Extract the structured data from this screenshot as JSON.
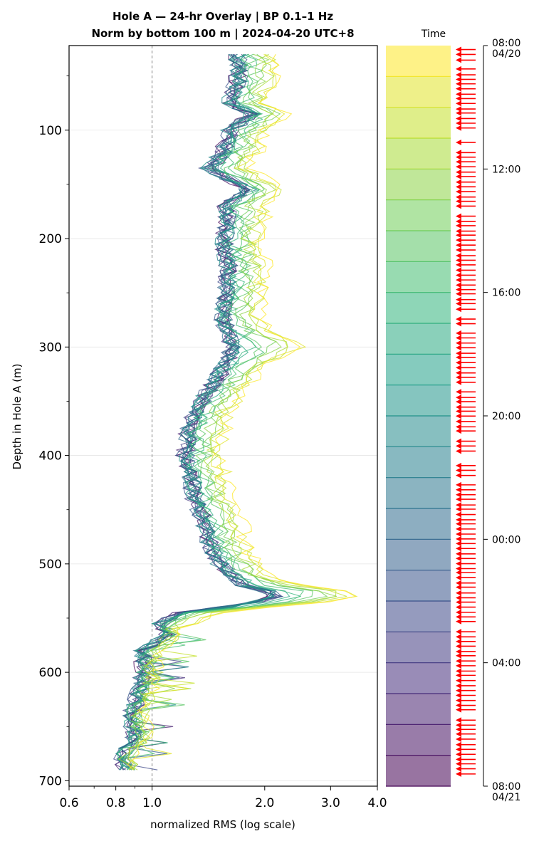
{
  "chart_data": {
    "type": "line",
    "title": "Hole A — 24-hr Overlay  |  BP 0.1–1 Hz",
    "subtitle": "Norm by bottom 100 m  |  2024-04-20 UTC+8",
    "xlabel": "normalized RMS  (log scale)",
    "ylabel": "Depth in Hole A (m)",
    "xscale": "log",
    "xlim": [
      0.6,
      4.0
    ],
    "ylim": [
      705,
      22
    ],
    "x_ticks": [
      "0.6",
      "0.8",
      "1.0",
      "2.0",
      "3.0",
      "4.0"
    ],
    "y_ticks": [
      "100",
      "200",
      "300",
      "400",
      "500",
      "600",
      "700"
    ],
    "reference_line_x": 1.0,
    "grid": "horizontal",
    "n_traces": 24,
    "trace_step_m": 5,
    "depth_range_m": [
      30,
      690
    ],
    "profile_knots": [
      [
        30,
        1.7
      ],
      [
        50,
        1.7
      ],
      [
        75,
        1.62
      ],
      [
        85,
        1.85
      ],
      [
        100,
        1.62
      ],
      [
        120,
        1.55
      ],
      [
        135,
        1.42
      ],
      [
        145,
        1.6
      ],
      [
        155,
        1.8
      ],
      [
        170,
        1.58
      ],
      [
        185,
        1.6
      ],
      [
        200,
        1.55
      ],
      [
        225,
        1.6
      ],
      [
        250,
        1.58
      ],
      [
        275,
        1.55
      ],
      [
        300,
        1.65
      ],
      [
        320,
        1.55
      ],
      [
        340,
        1.42
      ],
      [
        360,
        1.3
      ],
      [
        380,
        1.25
      ],
      [
        400,
        1.23
      ],
      [
        420,
        1.27
      ],
      [
        440,
        1.3
      ],
      [
        460,
        1.38
      ],
      [
        480,
        1.42
      ],
      [
        500,
        1.52
      ],
      [
        510,
        1.62
      ],
      [
        520,
        1.75
      ],
      [
        528,
        2.2
      ],
      [
        535,
        1.9
      ],
      [
        545,
        1.2
      ],
      [
        555,
        1.05
      ],
      [
        565,
        1.1
      ],
      [
        580,
        0.95
      ],
      [
        600,
        0.95
      ],
      [
        620,
        0.92
      ],
      [
        640,
        0.88
      ],
      [
        660,
        0.9
      ],
      [
        680,
        0.82
      ],
      [
        690,
        0.85
      ]
    ],
    "early_trace_peaks": [
      [
        300,
        2.35
      ],
      [
        528,
        3.1
      ]
    ],
    "colorbar": {
      "title": "Time",
      "colormap": "viridis (reversed, top = yellow)",
      "ticks": [
        {
          "line1": "08:00",
          "line2": "04/20",
          "hours": 0
        },
        {
          "line1": "12:00",
          "line2": "",
          "hours": 4
        },
        {
          "line1": "16:00",
          "line2": "",
          "hours": 8
        },
        {
          "line1": "20:00",
          "line2": "",
          "hours": 12
        },
        {
          "line1": "00:00",
          "line2": "",
          "hours": 16
        },
        {
          "line1": "04:00",
          "line2": "",
          "hours": 20
        },
        {
          "line1": "08:00",
          "line2": "04/21",
          "hours": 24
        }
      ],
      "bands": 24,
      "arrow_color": "#ff0000",
      "arrow_count": 150
    }
  }
}
